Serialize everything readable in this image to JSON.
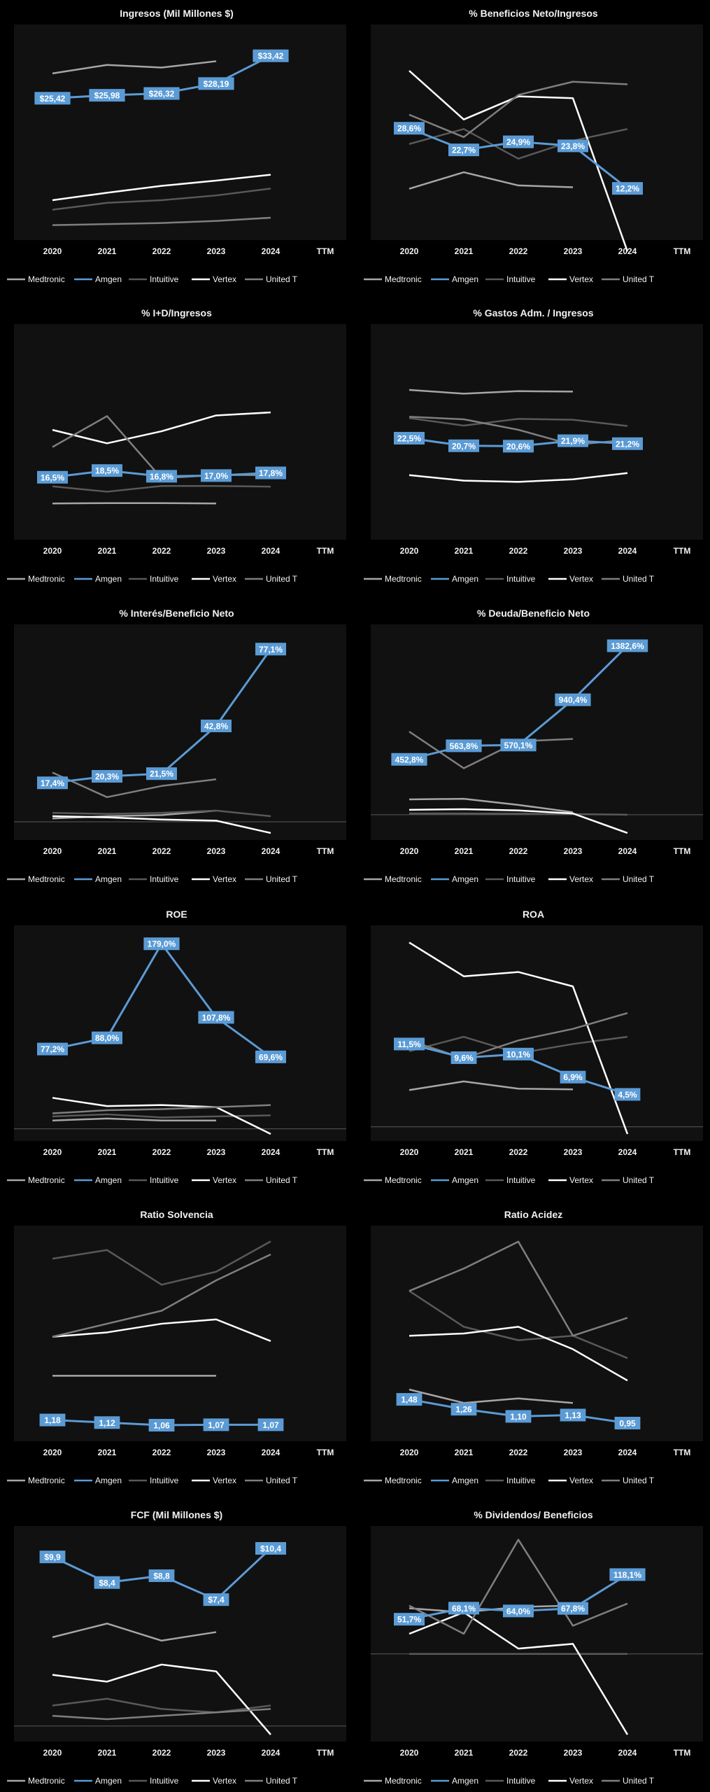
{
  "series_names": [
    "Medtronic",
    "Amgen",
    "Intuitive",
    "Vertex",
    "United T"
  ],
  "series_colors": [
    "#a6a6a6",
    "#5b9bd5",
    "#595959",
    "#ffffff",
    "#7f7f7f"
  ],
  "chart_data": [
    {
      "type": "line",
      "title": "Ingresos (Mil Millones $)",
      "categories": [
        "2020",
        "2021",
        "2022",
        "2023",
        "2024",
        "TTM"
      ],
      "ylim": [
        0,
        38
      ],
      "series": [
        {
          "name": "Medtronic",
          "values": [
            30.1,
            31.7,
            31.2,
            32.4,
            null,
            null
          ]
        },
        {
          "name": "Amgen",
          "values": [
            25.42,
            25.98,
            26.32,
            28.19,
            33.42,
            null
          ],
          "labels": [
            "$25,42",
            "$25,98",
            "$26,32",
            "$28,19",
            "$33,42",
            null
          ]
        },
        {
          "name": "Intuitive",
          "values": [
            4.4,
            5.7,
            6.2,
            7.1,
            8.4,
            null
          ]
        },
        {
          "name": "Vertex",
          "values": [
            6.2,
            7.6,
            8.9,
            9.9,
            11.0,
            null
          ]
        },
        {
          "name": "United T",
          "values": [
            1.5,
            1.7,
            1.9,
            2.3,
            2.9,
            null
          ]
        }
      ]
    },
    {
      "type": "line",
      "title": "% Beneficios Neto/Ingresos",
      "categories": [
        "2020",
        "2021",
        "2022",
        "2023",
        "2024",
        "TTM"
      ],
      "ylim": [
        0,
        55
      ],
      "series": [
        {
          "name": "Medtronic",
          "values": [
            12.1,
            16.6,
            13.0,
            12.5,
            null,
            null
          ]
        },
        {
          "name": "Amgen",
          "values": [
            28.6,
            22.7,
            24.9,
            23.8,
            12.2,
            null
          ],
          "labels": [
            "28,6%",
            "22,7%",
            "24,9%",
            "23,8%",
            "12,2%",
            null
          ]
        },
        {
          "name": "Intuitive",
          "values": [
            24.3,
            28.4,
            20.3,
            25.2,
            28.4,
            null
          ]
        },
        {
          "name": "Vertex",
          "values": [
            44.3,
            31.0,
            37.3,
            36.8,
            -5.0,
            null
          ]
        },
        {
          "name": "United T",
          "values": [
            32.3,
            26.2,
            37.7,
            41.3,
            40.6,
            null
          ]
        }
      ]
    },
    {
      "type": "line",
      "title": "% I+D/Ingresos",
      "categories": [
        "2020",
        "2021",
        "2022",
        "2023",
        "2024",
        "TTM"
      ],
      "ylim": [
        0,
        60
      ],
      "series": [
        {
          "name": "Medtronic",
          "values": [
            8.7,
            8.8,
            8.8,
            8.7,
            null,
            null
          ]
        },
        {
          "name": "Amgen",
          "values": [
            16.5,
            18.5,
            16.8,
            17.0,
            17.8,
            null
          ],
          "labels": [
            "16,5%",
            "18,5%",
            "16,8%",
            "17,0%",
            "17,8%",
            null
          ]
        },
        {
          "name": "Intuitive",
          "values": [
            13.8,
            12.2,
            13.9,
            13.9,
            13.7,
            null
          ]
        },
        {
          "name": "Vertex",
          "values": [
            30.6,
            26.6,
            30.2,
            34.9,
            35.8,
            null
          ]
        },
        {
          "name": "United T",
          "values": [
            25.5,
            34.7,
            16.2,
            17.2,
            17.1,
            null
          ]
        }
      ]
    },
    {
      "type": "line",
      "title": "% Gastos Adm. / Ingresos",
      "categories": [
        "2020",
        "2021",
        "2022",
        "2023",
        "2024",
        "TTM"
      ],
      "ylim": [
        0,
        48
      ],
      "series": [
        {
          "name": "Medtronic",
          "values": [
            34.0,
            33.1,
            33.7,
            33.6,
            null,
            null
          ]
        },
        {
          "name": "Amgen",
          "values": [
            22.5,
            20.7,
            20.6,
            21.9,
            21.2,
            null
          ],
          "labels": [
            "22,5%",
            "20,7%",
            "20,6%",
            "21,9%",
            "21,2%",
            null
          ]
        },
        {
          "name": "Intuitive",
          "values": [
            27.3,
            25.5,
            27.1,
            26.9,
            25.4,
            null
          ]
        },
        {
          "name": "Vertex",
          "values": [
            13.7,
            12.4,
            12.1,
            12.7,
            14.2,
            null
          ]
        },
        {
          "name": "United T",
          "values": [
            27.6,
            27.0,
            24.5,
            20.9,
            22.1,
            null
          ]
        }
      ]
    },
    {
      "type": "line",
      "title": "% Interés/Beneficio Neto",
      "categories": [
        "2020",
        "2021",
        "2022",
        "2023",
        "2024",
        "TTM"
      ],
      "ylim": [
        -5,
        85
      ],
      "series": [
        {
          "name": "Medtronic",
          "values": [
            1.5,
            2.5,
            3.0,
            5.0,
            null,
            null
          ]
        },
        {
          "name": "Amgen",
          "values": [
            17.4,
            20.3,
            21.5,
            42.8,
            77.1,
            null
          ],
          "labels": [
            "17,4%",
            "20,3%",
            "21,5%",
            "42,8%",
            "77,1%",
            null
          ]
        },
        {
          "name": "Intuitive",
          "values": [
            4.0,
            3.5,
            4.0,
            5.0,
            2.5,
            null
          ]
        },
        {
          "name": "Vertex",
          "values": [
            2.5,
            2.0,
            1.0,
            0.5,
            -5.0,
            null
          ]
        },
        {
          "name": "United T",
          "values": [
            22.0,
            11.0,
            16.0,
            19.0,
            null,
            null
          ]
        }
      ]
    },
    {
      "type": "line",
      "title": "% Deuda/Beneficio  Neto",
      "categories": [
        "2020",
        "2021",
        "2022",
        "2023",
        "2024",
        "TTM"
      ],
      "ylim": [
        -150,
        1500
      ],
      "series": [
        {
          "name": "Medtronic",
          "values": [
            125,
            130,
            80,
            20,
            null,
            null
          ]
        },
        {
          "name": "Amgen",
          "values": [
            452.8,
            563.8,
            570.1,
            940.4,
            1382.6,
            null
          ],
          "labels": [
            "452,8%",
            "563,8%",
            "570,1%",
            "940,4%",
            "1382,6%",
            null
          ]
        },
        {
          "name": "Intuitive",
          "values": [
            10,
            10,
            8,
            5,
            0,
            null
          ]
        },
        {
          "name": "Vertex",
          "values": [
            40,
            45,
            35,
            10,
            -150,
            null
          ]
        },
        {
          "name": "United T",
          "values": [
            680,
            380,
            600,
            620,
            null,
            null
          ]
        }
      ]
    },
    {
      "type": "line",
      "title": "ROE",
      "categories": [
        "2020",
        "2021",
        "2022",
        "2023",
        "2024",
        "TTM"
      ],
      "ylim": [
        -5,
        190
      ],
      "series": [
        {
          "name": "Medtronic",
          "values": [
            8.0,
            10.0,
            8.0,
            8.0,
            null,
            null
          ]
        },
        {
          "name": "Amgen",
          "values": [
            77.2,
            88.0,
            179.0,
            107.8,
            69.6,
            null
          ],
          "labels": [
            "77,2%",
            "88,0%",
            "179,0%",
            "107,8%",
            "69,6%",
            null
          ]
        },
        {
          "name": "Intuitive",
          "values": [
            12.0,
            14.0,
            11.0,
            12.0,
            13.0,
            null
          ]
        },
        {
          "name": "Vertex",
          "values": [
            30.0,
            22.0,
            23.0,
            21.0,
            -5.0,
            null
          ]
        },
        {
          "name": "United T",
          "values": [
            15.0,
            18.0,
            19.0,
            21.0,
            23.0,
            null
          ]
        }
      ]
    },
    {
      "type": "line",
      "title": "ROA",
      "categories": [
        "2020",
        "2021",
        "2022",
        "2023",
        "2024",
        "TTM"
      ],
      "ylim": [
        -1,
        27
      ],
      "series": [
        {
          "name": "Medtronic",
          "values": [
            5.1,
            6.3,
            5.3,
            5.2,
            null,
            null
          ]
        },
        {
          "name": "Amgen",
          "values": [
            11.5,
            9.6,
            10.1,
            6.9,
            4.5,
            null
          ],
          "labels": [
            "11,5%",
            "9,6%",
            "10,1%",
            "6,9%",
            "4,5%",
            null
          ]
        },
        {
          "name": "Intuitive",
          "values": [
            10.5,
            12.5,
            10.2,
            11.5,
            12.5,
            null
          ]
        },
        {
          "name": "Vertex",
          "values": [
            25.6,
            20.9,
            21.5,
            19.5,
            -1.0,
            null
          ]
        },
        {
          "name": "United T",
          "values": [
            12.0,
            9.5,
            12.0,
            13.6,
            15.8,
            null
          ]
        }
      ]
    },
    {
      "type": "line",
      "title": "Ratio Solvencia",
      "categories": [
        "2020",
        "2021",
        "2022",
        "2023",
        "2024",
        "TTM"
      ],
      "ylim": [
        0.85,
        5.5
      ],
      "series": [
        {
          "name": "Medtronic",
          "values": [
            2.2,
            2.2,
            2.2,
            2.2,
            null,
            null
          ]
        },
        {
          "name": "Amgen",
          "values": [
            1.18,
            1.12,
            1.06,
            1.07,
            1.07,
            null
          ],
          "labels": [
            "1,18",
            "1,12",
            "1,06",
            "1,07",
            "1,07",
            null
          ]
        },
        {
          "name": "Intuitive",
          "values": [
            4.9,
            5.1,
            4.3,
            4.6,
            5.3,
            null
          ]
        },
        {
          "name": "Vertex",
          "values": [
            3.1,
            3.2,
            3.4,
            3.5,
            3.0,
            null
          ]
        },
        {
          "name": "United T",
          "values": [
            3.1,
            3.4,
            3.7,
            4.4,
            5.0,
            null
          ]
        }
      ]
    },
    {
      "type": "line",
      "title": "Ratio Acidez",
      "categories": [
        "2020",
        "2021",
        "2022",
        "2023",
        "2024",
        "TTM"
      ],
      "ylim": [
        0.7,
        5.2
      ],
      "series": [
        {
          "name": "Medtronic",
          "values": [
            1.7,
            1.4,
            1.5,
            1.4,
            null,
            null
          ]
        },
        {
          "name": "Amgen",
          "values": [
            1.48,
            1.26,
            1.1,
            1.13,
            0.95,
            null
          ],
          "labels": [
            "1,48",
            "1,26",
            "1,10",
            "1,13",
            "0,95",
            null
          ]
        },
        {
          "name": "Intuitive",
          "values": [
            3.9,
            3.1,
            2.8,
            2.9,
            2.4,
            null
          ]
        },
        {
          "name": "Vertex",
          "values": [
            2.9,
            2.95,
            3.1,
            2.6,
            1.9,
            null
          ]
        },
        {
          "name": "United T",
          "values": [
            3.9,
            4.4,
            5.0,
            2.9,
            3.3,
            null
          ]
        }
      ]
    },
    {
      "type": "line",
      "title": "FCF (Mil Millones $)",
      "categories": [
        "2020",
        "2021",
        "2022",
        "2023",
        "2024",
        "TTM"
      ],
      "ylim": [
        -0.5,
        11.3
      ],
      "series": [
        {
          "name": "Medtronic",
          "values": [
            5.2,
            6.0,
            5.0,
            5.5,
            null,
            null
          ]
        },
        {
          "name": "Amgen",
          "values": [
            9.9,
            8.4,
            8.8,
            7.4,
            10.4,
            null
          ],
          "labels": [
            "$9,9",
            "$8,4",
            "$8,8",
            "$7,4",
            "$10,4",
            null
          ]
        },
        {
          "name": "Intuitive",
          "values": [
            1.2,
            1.6,
            1.0,
            0.8,
            1.2,
            null
          ]
        },
        {
          "name": "Vertex",
          "values": [
            3.0,
            2.6,
            3.6,
            3.2,
            -0.5,
            null
          ]
        },
        {
          "name": "United T",
          "values": [
            0.6,
            0.4,
            0.6,
            0.8,
            1.0,
            null
          ]
        }
      ]
    },
    {
      "type": "line",
      "title": "% Dividendos/  Beneficios",
      "categories": [
        "2020",
        "2021",
        "2022",
        "2023",
        "2024",
        "TTM"
      ],
      "ylim": [
        -120,
        180
      ],
      "series": [
        {
          "name": "Medtronic",
          "values": [
            68,
            62,
            70,
            72,
            null,
            null
          ]
        },
        {
          "name": "Amgen",
          "values": [
            51.7,
            68.1,
            64.0,
            67.8,
            118.1,
            null
          ],
          "labels": [
            "51,7%",
            "68,1%",
            "64,0%",
            "67,8%",
            "118,1%",
            null
          ]
        },
        {
          "name": "Intuitive",
          "values": [
            0,
            0,
            0,
            0,
            0,
            null
          ]
        },
        {
          "name": "Vertex",
          "values": [
            30,
            62,
            8,
            15,
            -120,
            null
          ]
        },
        {
          "name": "United T",
          "values": [
            72,
            30,
            170,
            42,
            75,
            null
          ]
        }
      ]
    }
  ]
}
